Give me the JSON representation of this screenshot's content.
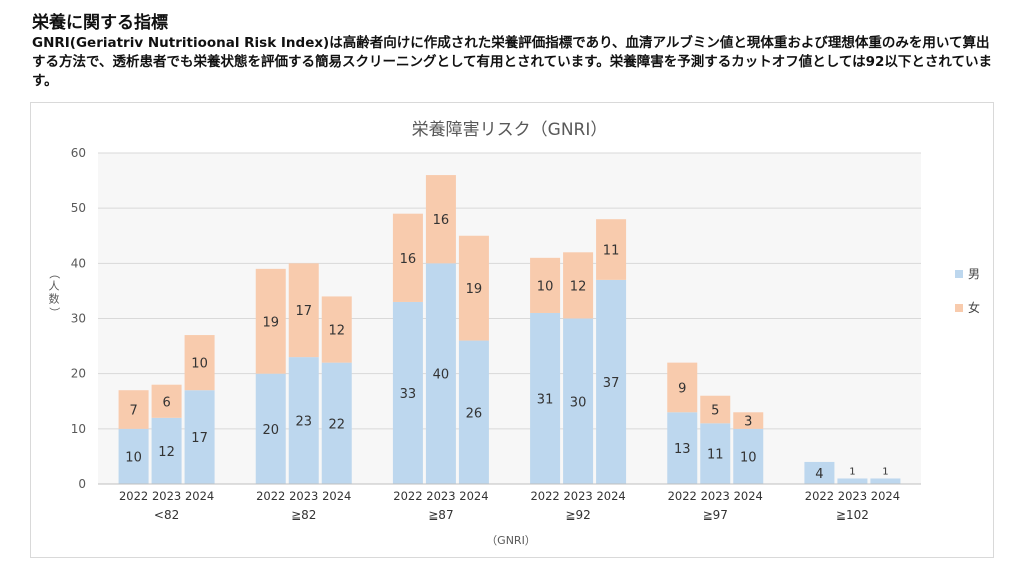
{
  "page": {
    "heading": "栄養に関する指標",
    "description": "GNRI(Geriatriv Nutritioonal Risk Index)は高齢者向けに作成された栄養評価指標であり、血清アルブミン値と現体重および理想体重のみを用いて算出する方法で、透析患者でも栄養状態を評価する簡易スクリーニングとして有用とされています。栄養障害を予測するカットオフ値としては92以下とされています。"
  },
  "colors": {
    "male": "#bdd7ee",
    "female": "#f8cbad",
    "grid": "#d9d9d9",
    "axis_text": "#595959"
  },
  "chart_data": {
    "type": "bar",
    "stacked": true,
    "title": "栄養障害リスク（GNRI）",
    "xlabel": "（GNRI）",
    "ylabel": "（人数）",
    "ylim": [
      0,
      60
    ],
    "yticks": [
      0,
      10,
      20,
      30,
      40,
      50,
      60
    ],
    "grid": true,
    "legend_position": "right",
    "groups": [
      {
        "label": "<82",
        "years": [
          "2022",
          "2023",
          "2024"
        ],
        "male": [
          10,
          12,
          17
        ],
        "female": [
          7,
          6,
          10
        ]
      },
      {
        "label": "≧82",
        "years": [
          "2022",
          "2023",
          "2024"
        ],
        "male": [
          20,
          23,
          22
        ],
        "female": [
          19,
          17,
          12
        ]
      },
      {
        "label": "≧87",
        "years": [
          "2022",
          "2023",
          "2024"
        ],
        "male": [
          33,
          40,
          26
        ],
        "female": [
          16,
          16,
          19
        ]
      },
      {
        "label": "≧92",
        "years": [
          "2022",
          "2023",
          "2024"
        ],
        "male": [
          31,
          30,
          37
        ],
        "female": [
          10,
          12,
          11
        ]
      },
      {
        "label": "≧97",
        "years": [
          "2022",
          "2023",
          "2024"
        ],
        "male": [
          13,
          11,
          10
        ],
        "female": [
          9,
          5,
          3
        ]
      },
      {
        "label": "≧102",
        "years": [
          "2022",
          "2023",
          "2024"
        ],
        "male": [
          4,
          1,
          1
        ],
        "female": [
          0,
          0,
          0
        ]
      }
    ],
    "series": [
      {
        "key": "male",
        "name": "男"
      },
      {
        "key": "female",
        "name": "女"
      }
    ]
  }
}
